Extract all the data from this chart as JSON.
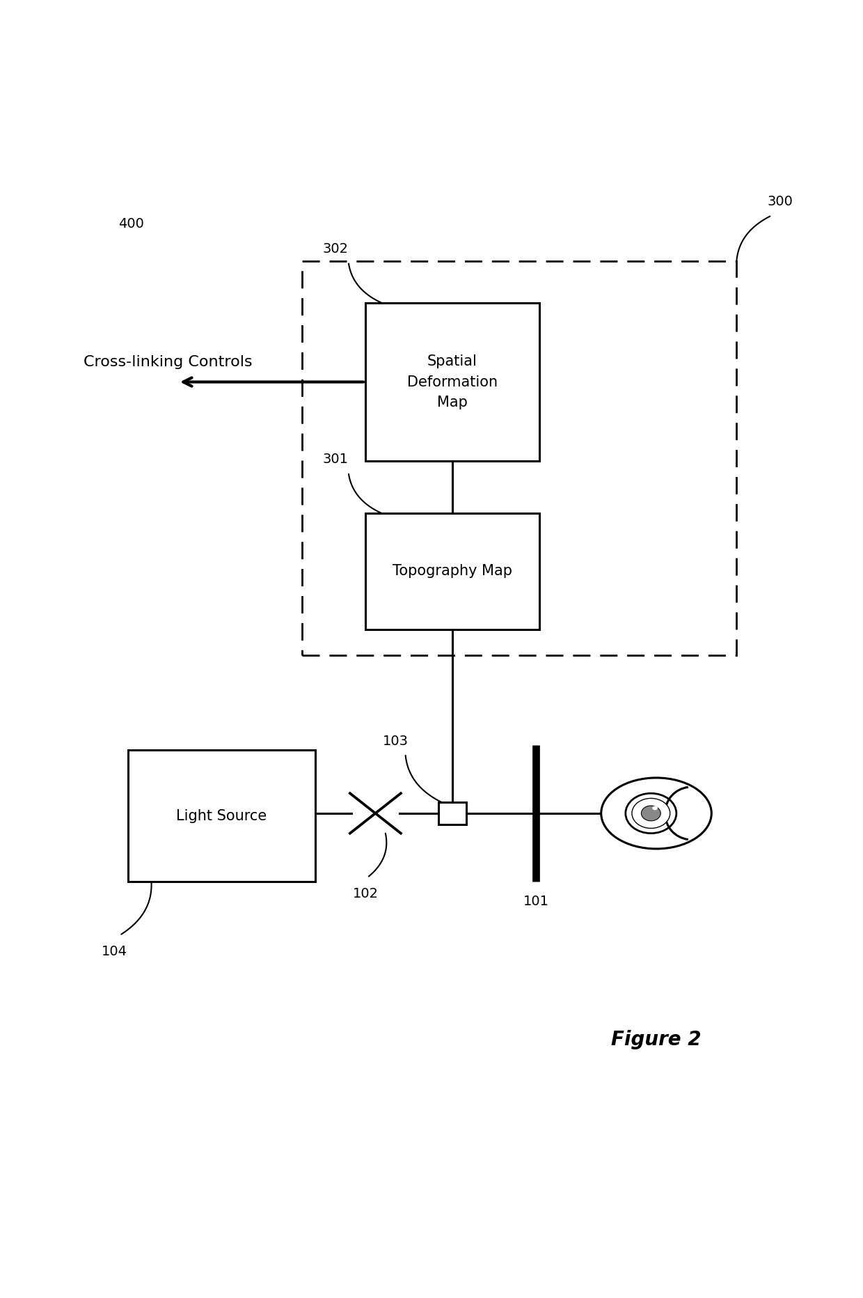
{
  "background_color": "#ffffff",
  "fig_width": 12.4,
  "fig_height": 18.64,
  "labels": {
    "light_source": "Light Source",
    "topography_map": "Topography Map",
    "spatial_deformation_map": "Spatial\nDeformation\nMap",
    "cross_linking_controls": "Cross-linking Controls",
    "num_101": "101",
    "num_102": "102",
    "num_103": "103",
    "num_104": "104",
    "num_300": "300",
    "num_301": "301",
    "num_302": "302",
    "num_400": "400",
    "figure_title": "Figure 2"
  },
  "font_size_box": 15,
  "font_size_num": 14,
  "font_size_title": 20,
  "lw": 2.2,
  "xlim": [
    0,
    10
  ],
  "ylim": [
    0,
    19
  ]
}
